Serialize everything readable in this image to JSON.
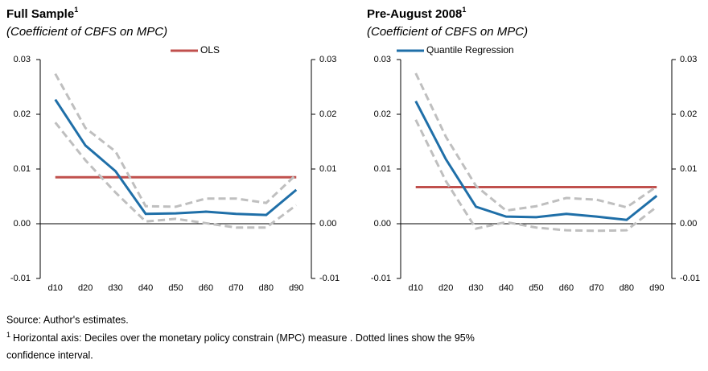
{
  "chart_data": [
    {
      "type": "line",
      "title": "Full Sample",
      "title_superscript": "1",
      "subtitle": "(Coefficient of CBFS on MPC)",
      "categories": [
        "d10",
        "d20",
        "d30",
        "d40",
        "d50",
        "d60",
        "d70",
        "d80",
        "d90"
      ],
      "series": [
        {
          "name": "OLS",
          "color": "#c0504d",
          "in_legend": true,
          "values": [
            0.0085,
            0.0085,
            0.0085,
            0.0085,
            0.0085,
            0.0085,
            0.0085,
            0.0085,
            0.0085
          ]
        },
        {
          "color": "#bfbfbf",
          "dashed": true,
          "values": [
            0.0274,
            0.0175,
            0.0132,
            0.0032,
            0.0031,
            0.0046,
            0.0046,
            0.0038,
            0.009
          ]
        },
        {
          "color": "#bfbfbf",
          "dashed": true,
          "values": [
            0.0185,
            0.0116,
            0.0057,
            0.0004,
            0.0009,
            0.0001,
            -0.0007,
            -0.0007,
            0.0034
          ]
        },
        {
          "name": "Quantile Regression",
          "color": "#1f6fa8",
          "in_legend": false,
          "values": [
            0.0227,
            0.0143,
            0.0096,
            0.0018,
            0.0019,
            0.0022,
            0.0018,
            0.0016,
            0.0062
          ]
        }
      ],
      "ylim": [
        -0.01,
        0.03
      ],
      "yticks": [
        -0.01,
        {
          "value": 0,
          "label": "0.00"
        },
        0.01,
        0.02,
        0.03
      ],
      "y2lim": [
        -0.01,
        0.03
      ],
      "y2ticks": [
        -0.01,
        {
          "value": 0,
          "label": "0.00"
        },
        0.01,
        0.02,
        0.03
      ]
    },
    {
      "type": "line",
      "title": "Pre-August 2008",
      "title_superscript": "1",
      "subtitle": "(Coefficient of CBFS on MPC)",
      "categories": [
        "d10",
        "d20",
        "d30",
        "d40",
        "d50",
        "d60",
        "d70",
        "d80",
        "d90"
      ],
      "series": [
        {
          "name": "OLS",
          "color": "#c0504d",
          "in_legend": false,
          "values": [
            0.0067,
            0.0067,
            0.0067,
            0.0067,
            0.0067,
            0.0067,
            0.0067,
            0.0067,
            0.0067
          ]
        },
        {
          "color": "#bfbfbf",
          "dashed": true,
          "values": [
            0.0275,
            0.0159,
            0.0069,
            0.0024,
            0.0032,
            0.0047,
            0.0044,
            0.003,
            0.0068
          ]
        },
        {
          "color": "#bfbfbf",
          "dashed": true,
          "values": [
            0.019,
            0.0078,
            -0.0009,
            0.0003,
            -0.0007,
            -0.0012,
            -0.0013,
            -0.0012,
            0.0031
          ]
        },
        {
          "name": "Quantile Regression",
          "color": "#1f6fa8",
          "in_legend": true,
          "values": [
            0.0224,
            0.0118,
            0.0031,
            0.0013,
            0.0012,
            0.0018,
            0.0013,
            0.0007,
            0.0051
          ]
        }
      ],
      "ylim": [
        -0.01,
        0.03
      ],
      "yticks": [
        -0.01,
        {
          "value": 0,
          "label": "0.00"
        },
        0.01,
        0.02,
        0.03
      ],
      "y2lim": [
        -0.01,
        0.03
      ],
      "y2ticks": [
        -0.01,
        {
          "value": 0,
          "label": "0.00"
        },
        0.01,
        0.02,
        0.03
      ]
    }
  ],
  "notes": {
    "source": "Source: Author's estimates.",
    "footnote_marker": "1",
    "footnote": "Horizontal axis: Deciles over the monetary policy constrain (MPC) measure . Dotted lines show the 95%",
    "footnote_cont": "confidence interval."
  }
}
